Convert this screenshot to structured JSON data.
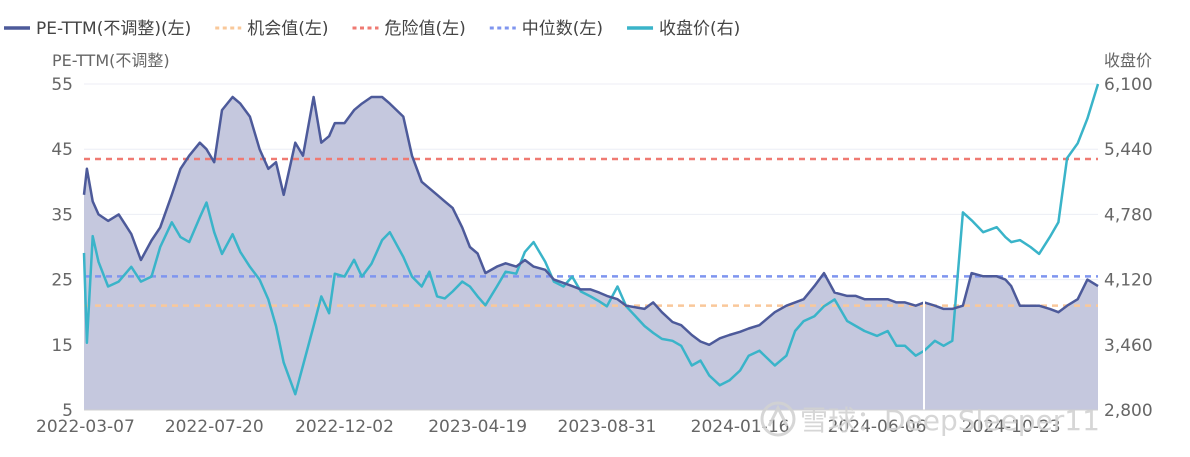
{
  "chart_data": {
    "type": "line",
    "legend": [
      {
        "name": "PE-TTM(不调整)(左)",
        "color": "#4d5a9a",
        "style": "solid"
      },
      {
        "name": "机会值(左)",
        "color": "#f9c89a",
        "style": "dotted"
      },
      {
        "name": "危险值(左)",
        "color": "#ef7a72",
        "style": "dotted"
      },
      {
        "name": "中位数(左)",
        "color": "#7f95ef",
        "style": "dotted"
      },
      {
        "name": "收盘价(右)",
        "color": "#3ab4c9",
        "style": "solid"
      }
    ],
    "y_left_label": "PE-TTM(不调整)",
    "y_right_label": "收盘价",
    "y_left_ticks": [
      "55",
      "45",
      "35",
      "25",
      "15",
      "5"
    ],
    "y_right_ticks": [
      "6,100",
      "5,440",
      "4,780",
      "4,120",
      "3,460",
      "2,800"
    ],
    "ylim_left": [
      5,
      55
    ],
    "ylim_right": [
      2800,
      6100
    ],
    "x_ticks": [
      "2022-03-07",
      "2022-07-20",
      "2022-12-02",
      "2023-04-19",
      "2023-08-31",
      "2024-01-16",
      "2024-06-06",
      "2024-10-23"
    ],
    "reference_lines": {
      "opportunity": 21,
      "danger": 43.5,
      "median": 25.5
    },
    "pe_series": {
      "x": [
        "2022-03-07",
        "2022-03-10",
        "2022-03-16",
        "2022-03-22",
        "2022-04-01",
        "2022-04-12",
        "2022-04-25",
        "2022-05-05",
        "2022-05-16",
        "2022-05-25",
        "2022-06-06",
        "2022-06-15",
        "2022-06-24",
        "2022-07-05",
        "2022-07-12",
        "2022-07-20",
        "2022-07-28",
        "2022-08-08",
        "2022-08-16",
        "2022-08-26",
        "2022-09-05",
        "2022-09-14",
        "2022-09-22",
        "2022-09-30",
        "2022-10-12",
        "2022-10-20",
        "2022-10-31",
        "2022-11-08",
        "2022-11-16",
        "2022-11-22",
        "2022-12-02",
        "2022-12-12",
        "2022-12-20",
        "2022-12-30",
        "2023-01-10",
        "2023-01-18",
        "2023-02-01",
        "2023-02-10",
        "2023-02-20",
        "2023-02-28",
        "2023-03-08",
        "2023-03-16",
        "2023-03-24",
        "2023-04-03",
        "2023-04-11",
        "2023-04-19",
        "2023-04-27",
        "2023-05-09",
        "2023-05-18",
        "2023-05-29",
        "2023-06-07",
        "2023-06-16",
        "2023-06-28",
        "2023-07-07",
        "2023-07-17",
        "2023-07-26",
        "2023-08-04",
        "2023-08-14",
        "2023-08-23",
        "2023-08-31",
        "2023-09-11",
        "2023-09-20",
        "2023-10-09",
        "2023-10-18",
        "2023-10-27",
        "2023-11-07",
        "2023-11-16",
        "2023-11-27",
        "2023-12-06",
        "2023-12-15",
        "2023-12-26",
        "2024-01-05",
        "2024-01-16",
        "2024-01-25",
        "2024-02-05",
        "2024-02-21",
        "2024-03-04",
        "2024-03-13",
        "2024-03-22",
        "2024-04-02",
        "2024-04-12",
        "2024-04-23",
        "2024-05-06",
        "2024-05-15",
        "2024-05-24",
        "2024-06-06",
        "2024-06-17",
        "2024-06-26",
        "2024-07-05",
        "2024-07-16",
        "2024-07-25",
        "2024-08-05",
        "2024-08-14",
        "2024-08-23",
        "2024-09-03",
        "2024-09-12",
        "2024-09-24",
        "2024-10-08",
        "2024-10-17",
        "2024-10-23",
        "2024-11-01",
        "2024-11-12",
        "2024-11-21",
        "2024-12-02",
        "2024-12-11",
        "2024-12-20",
        "2024-12-31",
        "2025-01-10",
        "2025-01-21"
      ],
      "values": [
        38,
        42,
        37,
        35,
        34,
        35,
        32,
        28,
        31,
        33,
        38,
        42,
        44,
        46,
        45,
        43,
        51,
        53,
        52,
        50,
        45,
        42,
        43,
        38,
        46,
        44,
        53,
        46,
        47,
        49,
        49,
        51,
        52,
        53,
        53,
        52,
        50,
        44,
        40,
        39,
        38,
        37,
        36,
        33,
        30,
        29,
        26,
        27,
        27.5,
        27,
        28,
        27,
        26.5,
        25,
        24.5,
        24,
        23.5,
        23.5,
        23,
        22.5,
        22,
        21,
        20.5,
        21.5,
        20,
        18.5,
        18,
        16.5,
        15.5,
        15,
        16,
        16.5,
        17,
        17.5,
        18,
        20,
        21,
        21.5,
        22,
        24,
        26,
        23,
        22.5,
        22.5,
        22,
        22,
        22,
        21.5,
        21.5,
        21,
        21.5,
        21,
        20.5,
        20.5,
        21,
        26,
        25.5,
        25.5,
        25,
        24,
        21,
        21,
        21,
        20.5,
        20,
        21,
        22,
        25,
        24
      ]
    },
    "close_series": {
      "x": [
        "2022-03-07",
        "2022-03-10",
        "2022-03-16",
        "2022-03-22",
        "2022-04-01",
        "2022-04-12",
        "2022-04-25",
        "2022-05-05",
        "2022-05-16",
        "2022-05-25",
        "2022-06-06",
        "2022-06-15",
        "2022-06-24",
        "2022-07-05",
        "2022-07-12",
        "2022-07-20",
        "2022-07-28",
        "2022-08-08",
        "2022-08-16",
        "2022-08-26",
        "2022-09-05",
        "2022-09-14",
        "2022-09-22",
        "2022-09-30",
        "2022-10-12",
        "2022-10-20",
        "2022-10-31",
        "2022-11-08",
        "2022-11-16",
        "2022-11-22",
        "2022-12-02",
        "2022-12-12",
        "2022-12-20",
        "2022-12-30",
        "2023-01-10",
        "2023-01-18",
        "2023-02-01",
        "2023-02-10",
        "2023-02-20",
        "2023-02-28",
        "2023-03-08",
        "2023-03-16",
        "2023-03-24",
        "2023-04-03",
        "2023-04-11",
        "2023-04-19",
        "2023-04-27",
        "2023-05-09",
        "2023-05-18",
        "2023-05-29",
        "2023-06-07",
        "2023-06-16",
        "2023-06-28",
        "2023-07-07",
        "2023-07-17",
        "2023-07-26",
        "2023-08-04",
        "2023-08-14",
        "2023-08-23",
        "2023-08-31",
        "2023-09-11",
        "2023-09-20",
        "2023-10-09",
        "2023-10-18",
        "2023-10-27",
        "2023-11-07",
        "2023-11-16",
        "2023-11-27",
        "2023-12-06",
        "2023-12-15",
        "2023-12-26",
        "2024-01-05",
        "2024-01-16",
        "2024-01-25",
        "2024-02-05",
        "2024-02-21",
        "2024-03-04",
        "2024-03-13",
        "2024-03-22",
        "2024-04-02",
        "2024-04-12",
        "2024-04-23",
        "2024-05-06",
        "2024-05-15",
        "2024-05-24",
        "2024-06-06",
        "2024-06-17",
        "2024-06-26",
        "2024-07-05",
        "2024-07-16",
        "2024-07-25",
        "2024-08-05",
        "2024-08-14",
        "2024-08-23",
        "2024-09-03",
        "2024-09-12",
        "2024-09-24",
        "2024-10-08",
        "2024-10-17",
        "2024-10-23",
        "2024-11-01",
        "2024-11-12",
        "2024-11-21",
        "2024-12-02",
        "2024-12-11",
        "2024-12-20",
        "2024-12-31",
        "2025-01-10",
        "2025-01-21"
      ],
      "values": [
        4390,
        3480,
        4560,
        4300,
        4050,
        4100,
        4250,
        4100,
        4150,
        4450,
        4700,
        4550,
        4500,
        4750,
        4900,
        4600,
        4380,
        4580,
        4400,
        4250,
        4120,
        3920,
        3650,
        3280,
        2960,
        3250,
        3650,
        3950,
        3780,
        4180,
        4150,
        4320,
        4150,
        4280,
        4520,
        4600,
        4350,
        4150,
        4050,
        4200,
        3950,
        3930,
        4000,
        4100,
        4050,
        3950,
        3860,
        4050,
        4200,
        4180,
        4400,
        4500,
        4300,
        4100,
        4050,
        4150,
        4000,
        3950,
        3900,
        3850,
        4050,
        3850,
        3650,
        3580,
        3520,
        3500,
        3450,
        3250,
        3300,
        3150,
        3050,
        3100,
        3200,
        3350,
        3400,
        3250,
        3350,
        3600,
        3700,
        3750,
        3850,
        3920,
        3700,
        3650,
        3600,
        3550,
        3600,
        3450,
        3450,
        3350,
        3400,
        3500,
        3450,
        3500,
        4800,
        4720,
        4600,
        4650,
        4550,
        4500,
        4520,
        4450,
        4380,
        4550,
        4700,
        5350,
        5500,
        5750,
        6100
      ]
    }
  },
  "watermark": "雪球：DeepSleeper11"
}
